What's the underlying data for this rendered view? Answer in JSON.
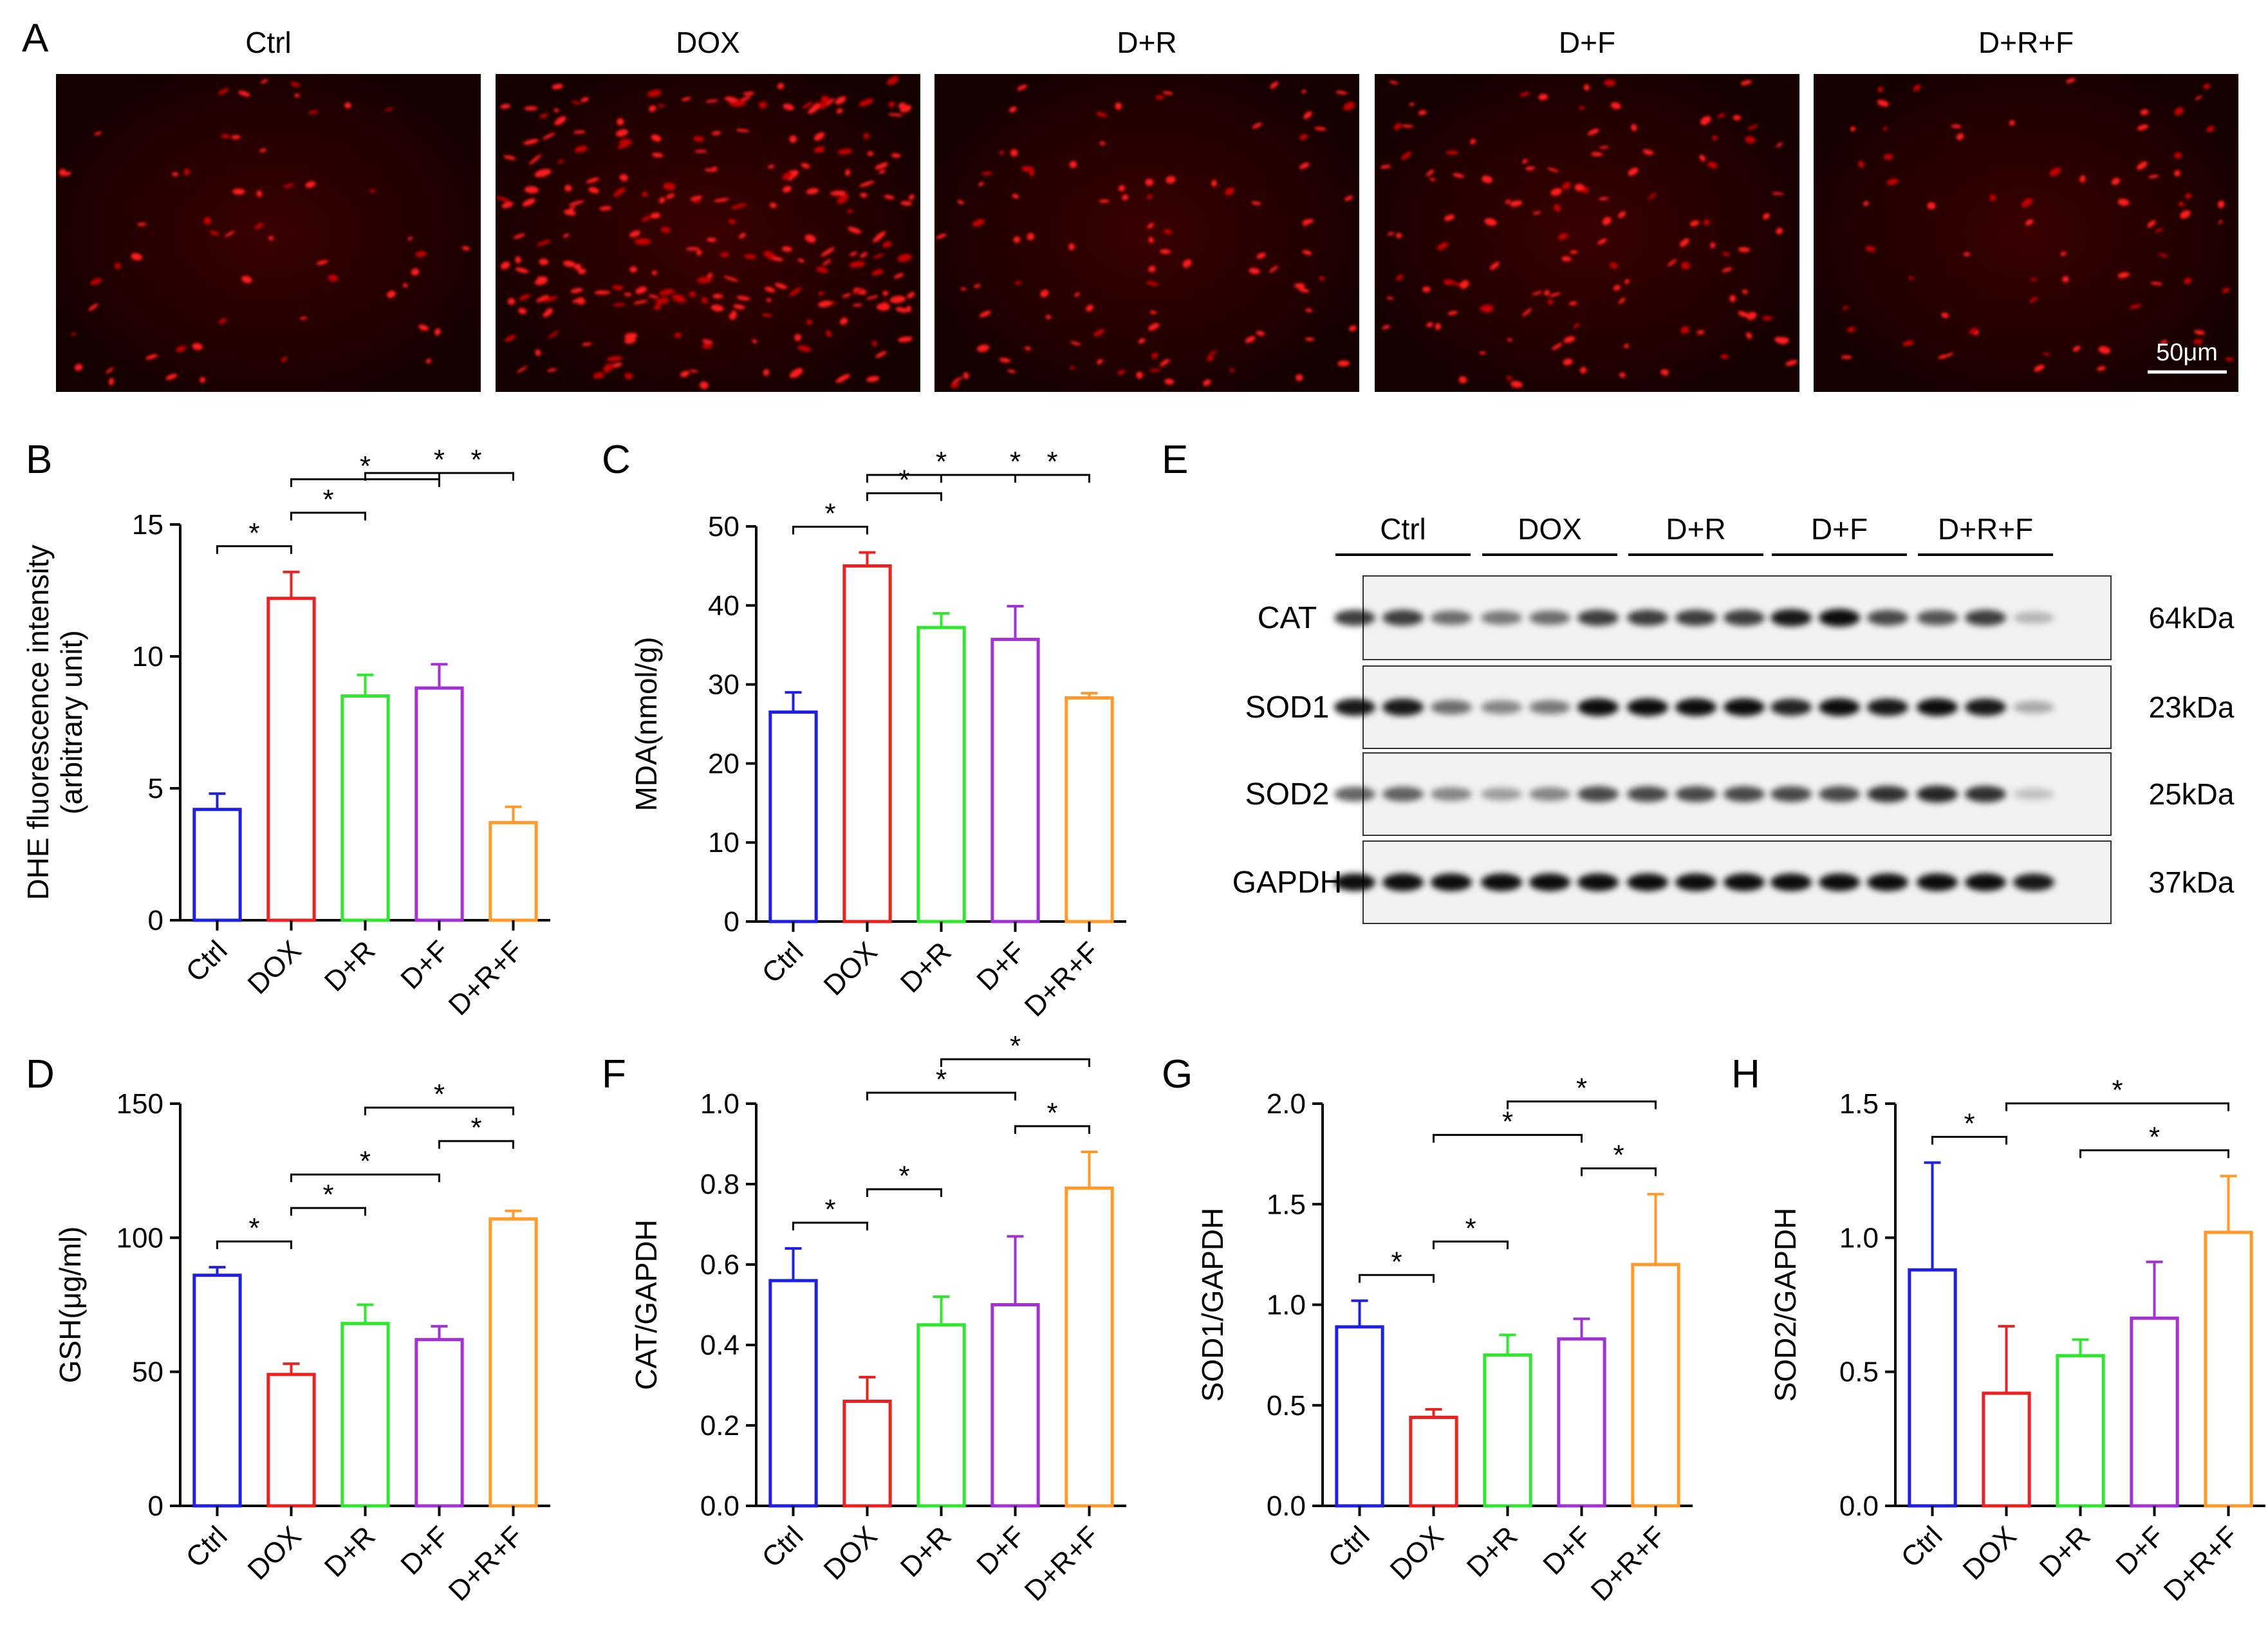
{
  "figure": {
    "panel_a": {
      "letter": "A",
      "images": [
        {
          "label": "Ctrl"
        },
        {
          "label": "DOX"
        },
        {
          "label": "D+R"
        },
        {
          "label": "D+F"
        },
        {
          "label": "D+R+F"
        }
      ],
      "scale_bar": "50μm"
    },
    "panel_e": {
      "letter": "E",
      "lanes": [
        "Ctrl",
        "DOX",
        "D+R",
        "D+F",
        "D+R+F"
      ],
      "blots": [
        {
          "protein": "CAT",
          "size": "64kDa"
        },
        {
          "protein": "SOD1",
          "size": "23kDa"
        },
        {
          "protein": "SOD2",
          "size": "25kDa"
        },
        {
          "protein": "GAPDH",
          "size": "37kDa"
        }
      ]
    },
    "colors": {
      "Ctrl": "#1f1fe6",
      "DOX": "#ee2020",
      "D+R": "#2ee82e",
      "D+F": "#a530d8",
      "D+R+F": "#ff9a2a"
    }
  },
  "chart_data": [
    {
      "panel": "B",
      "type": "bar",
      "categories": [
        "Ctrl",
        "DOX",
        "D+R",
        "D+F",
        "D+R+F"
      ],
      "values": [
        4.2,
        12.2,
        8.5,
        8.8,
        3.7
      ],
      "errors": [
        0.6,
        1.0,
        0.8,
        0.9,
        0.6
      ],
      "ylabel": "DHE fluorescence intensity\n(arbitrary unit)",
      "ylim": [
        0,
        15
      ],
      "yticks": [
        "0",
        "5",
        "10",
        "15"
      ],
      "significance": [
        [
          0,
          1
        ],
        [
          1,
          2
        ],
        [
          1,
          3
        ],
        [
          3,
          4
        ],
        [
          2,
          4
        ]
      ]
    },
    {
      "panel": "C",
      "type": "bar",
      "categories": [
        "Ctrl",
        "DOX",
        "D+R",
        "D+F",
        "D+R+F"
      ],
      "values": [
        26.5,
        45.0,
        37.2,
        35.7,
        28.3
      ],
      "errors": [
        2.5,
        1.7,
        1.8,
        4.2,
        0.6
      ],
      "ylabel": "MDA(nmol/g)",
      "ylim": [
        0,
        50
      ],
      "yticks": [
        "0",
        "10",
        "20",
        "30",
        "40",
        "50"
      ],
      "significance": [
        [
          0,
          1
        ],
        [
          1,
          2
        ],
        [
          1,
          3
        ],
        [
          3,
          4
        ],
        [
          2,
          4
        ]
      ]
    },
    {
      "panel": "D",
      "type": "bar",
      "categories": [
        "Ctrl",
        "DOX",
        "D+R",
        "D+F",
        "D+R+F"
      ],
      "values": [
        86,
        49,
        68,
        62,
        107
      ],
      "errors": [
        3,
        4,
        7,
        5,
        3
      ],
      "ylabel": "GSH(μg/ml)",
      "ylim": [
        0,
        150
      ],
      "yticks": [
        "0",
        "50",
        "100",
        "150"
      ],
      "significance": [
        [
          0,
          1
        ],
        [
          1,
          2
        ],
        [
          1,
          3
        ],
        [
          3,
          4
        ],
        [
          2,
          4
        ]
      ]
    },
    {
      "panel": "F",
      "type": "bar",
      "categories": [
        "Ctrl",
        "DOX",
        "D+R",
        "D+F",
        "D+R+F"
      ],
      "values": [
        0.56,
        0.26,
        0.45,
        0.5,
        0.79
      ],
      "errors": [
        0.08,
        0.06,
        0.07,
        0.17,
        0.09
      ],
      "ylabel": "CAT/GAPDH",
      "ylim": [
        0,
        1.0
      ],
      "yticks": [
        "0.0",
        "0.2",
        "0.4",
        "0.6",
        "0.8",
        "1.0"
      ],
      "significance": [
        [
          0,
          1
        ],
        [
          1,
          2
        ],
        [
          3,
          4
        ],
        [
          1,
          3
        ],
        [
          2,
          4
        ]
      ]
    },
    {
      "panel": "G",
      "type": "bar",
      "categories": [
        "Ctrl",
        "DOX",
        "D+R",
        "D+F",
        "D+R+F"
      ],
      "values": [
        0.89,
        0.44,
        0.75,
        0.83,
        1.2
      ],
      "errors": [
        0.13,
        0.04,
        0.1,
        0.1,
        0.35
      ],
      "ylabel": "SOD1/GAPDH",
      "ylim": [
        0,
        2.0
      ],
      "yticks": [
        "0.0",
        "0.5",
        "1.0",
        "1.5",
        "2.0"
      ],
      "significance": [
        [
          0,
          1
        ],
        [
          1,
          2
        ],
        [
          3,
          4
        ],
        [
          1,
          3
        ],
        [
          2,
          4
        ]
      ]
    },
    {
      "panel": "H",
      "type": "bar",
      "categories": [
        "Ctrl",
        "DOX",
        "D+R",
        "D+F",
        "D+R+F"
      ],
      "values": [
        0.88,
        0.42,
        0.56,
        0.7,
        1.02
      ],
      "errors": [
        0.4,
        0.25,
        0.06,
        0.21,
        0.21
      ],
      "ylabel": "SOD2/GAPDH",
      "ylim": [
        0,
        1.5
      ],
      "yticks": [
        "0.0",
        "0.5",
        "1.0",
        "1.5"
      ],
      "significance": [
        [
          0,
          1
        ],
        [
          2,
          4
        ],
        [
          1,
          4
        ]
      ]
    }
  ]
}
